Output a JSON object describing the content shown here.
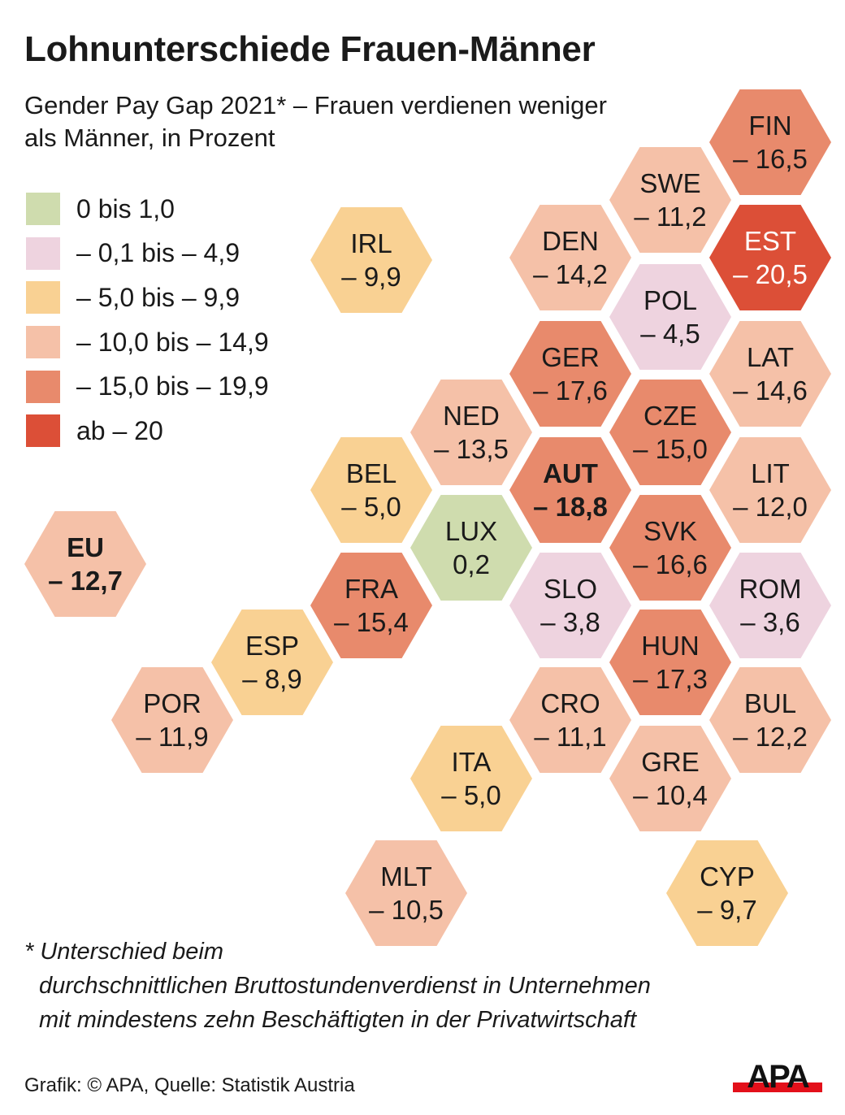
{
  "title": "Lohnunterschiede Frauen-Männer",
  "subtitle": "Gender Pay Gap 2021* – Frauen verdienen weniger als Männer, in Prozent",
  "legend": [
    {
      "label": "0 bis 1,0",
      "color": "#cfdcae"
    },
    {
      "label": "– 0,1 bis – 4,9",
      "color": "#eed3df"
    },
    {
      "label": "– 5,0 bis – 9,9",
      "color": "#f9d193"
    },
    {
      "label": "– 10,0 bis – 14,9",
      "color": "#f5c1a8"
    },
    {
      "label": "– 15,0 bis – 19,9",
      "color": "#e88a6c"
    },
    {
      "label": "ab – 20",
      "color": "#dc4f37"
    }
  ],
  "chart_data": {
    "type": "hex-tile-map",
    "title": "Lohnunterschiede Frauen-Männer",
    "unit": "Prozent",
    "tiles": [
      {
        "code": "FIN",
        "label": "– 16,5",
        "value": -16.5
      },
      {
        "code": "SWE",
        "label": "– 11,2",
        "value": -11.2
      },
      {
        "code": "EST",
        "label": "– 20,5",
        "value": -20.5
      },
      {
        "code": "DEN",
        "label": "– 14,2",
        "value": -14.2
      },
      {
        "code": "IRL",
        "label": "– 9,9",
        "value": -9.9
      },
      {
        "code": "POL",
        "label": "– 4,5",
        "value": -4.5
      },
      {
        "code": "LAT",
        "label": "– 14,6",
        "value": -14.6
      },
      {
        "code": "GER",
        "label": "– 17,6",
        "value": -17.6
      },
      {
        "code": "NED",
        "label": "– 13,5",
        "value": -13.5
      },
      {
        "code": "CZE",
        "label": "– 15,0",
        "value": -15.0
      },
      {
        "code": "LIT",
        "label": "– 12,0",
        "value": -12.0
      },
      {
        "code": "BEL",
        "label": "– 5,0",
        "value": -5.0
      },
      {
        "code": "AUT",
        "label": "– 18,8",
        "value": -18.8,
        "bold": true
      },
      {
        "code": "LUX",
        "label": "0,2",
        "value": 0.2
      },
      {
        "code": "SVK",
        "label": "– 16,6",
        "value": -16.6
      },
      {
        "code": "EU",
        "label": "– 12,7",
        "value": -12.7,
        "bold": true
      },
      {
        "code": "FRA",
        "label": "– 15,4",
        "value": -15.4
      },
      {
        "code": "SLO",
        "label": "– 3,8",
        "value": -3.8
      },
      {
        "code": "ROM",
        "label": "– 3,6",
        "value": -3.6
      },
      {
        "code": "ESP",
        "label": "– 8,9",
        "value": -8.9
      },
      {
        "code": "HUN",
        "label": "– 17,3",
        "value": -17.3
      },
      {
        "code": "POR",
        "label": "– 11,9",
        "value": -11.9
      },
      {
        "code": "CRO",
        "label": "– 11,1",
        "value": -11.1
      },
      {
        "code": "BUL",
        "label": "– 12,2",
        "value": -12.2
      },
      {
        "code": "ITA",
        "label": "– 5,0",
        "value": -5.0
      },
      {
        "code": "GRE",
        "label": "– 10,4",
        "value": -10.4
      },
      {
        "code": "MLT",
        "label": "– 10,5",
        "value": -10.5
      },
      {
        "code": "CYP",
        "label": "– 9,7",
        "value": -9.7
      }
    ]
  },
  "footnote": {
    "line1": "* Unterschied beim",
    "line2": "durchschnittlichen Bruttostundenverdienst in Unternehmen",
    "line3": "mit mindestens zehn Beschäftigten in der Privatwirtschaft"
  },
  "source": "Grafik: © APA, Quelle: Statistik Austria",
  "logo": {
    "text": "APA",
    "color": "#e3101a"
  }
}
